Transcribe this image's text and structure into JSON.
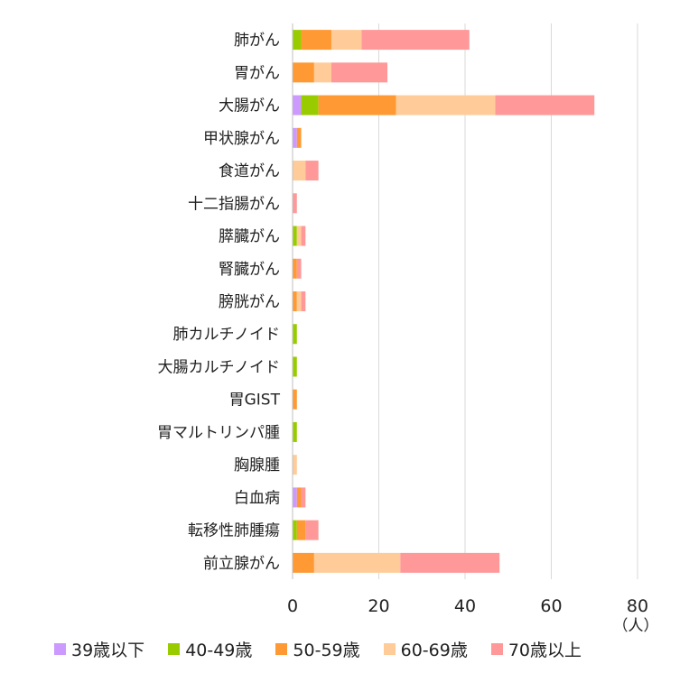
{
  "chart_data": {
    "type": "bar",
    "orientation": "horizontal",
    "stacked": true,
    "categories": [
      "肺がん",
      "胃がん",
      "大腸がん",
      "甲状腺がん",
      "食道がん",
      "十二指腸がん",
      "膵臓がん",
      "腎臓がん",
      "膀胱がん",
      "肺カルチノイド",
      "大腸カルチノイド",
      "胃GIST",
      "胃マルトリンパ腫",
      "胸腺腫",
      "白血病",
      "転移性肺腫瘍",
      "前立腺がん"
    ],
    "series": [
      {
        "name": "39歳以下",
        "color": "#cc99ff",
        "values": [
          0,
          0,
          2,
          1,
          0,
          0,
          0,
          0,
          0,
          0,
          0,
          0,
          0,
          0,
          1,
          0,
          0
        ]
      },
      {
        "name": "40-49歳",
        "color": "#99cc00",
        "values": [
          2,
          0,
          4,
          0,
          0,
          0,
          1,
          0,
          0,
          1,
          1,
          0,
          1,
          0,
          0,
          1,
          0
        ]
      },
      {
        "name": "50-59歳",
        "color": "#ff9933",
        "values": [
          7,
          5,
          18,
          1,
          0,
          0,
          0,
          1,
          1,
          0,
          0,
          1,
          0,
          0,
          1,
          2,
          5
        ]
      },
      {
        "name": "60-69歳",
        "color": "#ffcc99",
        "values": [
          7,
          4,
          23,
          0,
          3,
          0,
          1,
          0,
          1,
          0,
          0,
          0,
          0,
          1,
          0,
          0,
          20
        ]
      },
      {
        "name": "70歳以上",
        "color": "#ff9999",
        "values": [
          25,
          13,
          23,
          0,
          3,
          1,
          1,
          1,
          1,
          0,
          0,
          0,
          0,
          0,
          1,
          3,
          23
        ]
      }
    ],
    "xlim": [
      0,
      80
    ],
    "xticks": [
      "0",
      "20",
      "40",
      "60",
      "80"
    ],
    "unit": "（人）",
    "grid": true,
    "legend_position": "bottom"
  }
}
